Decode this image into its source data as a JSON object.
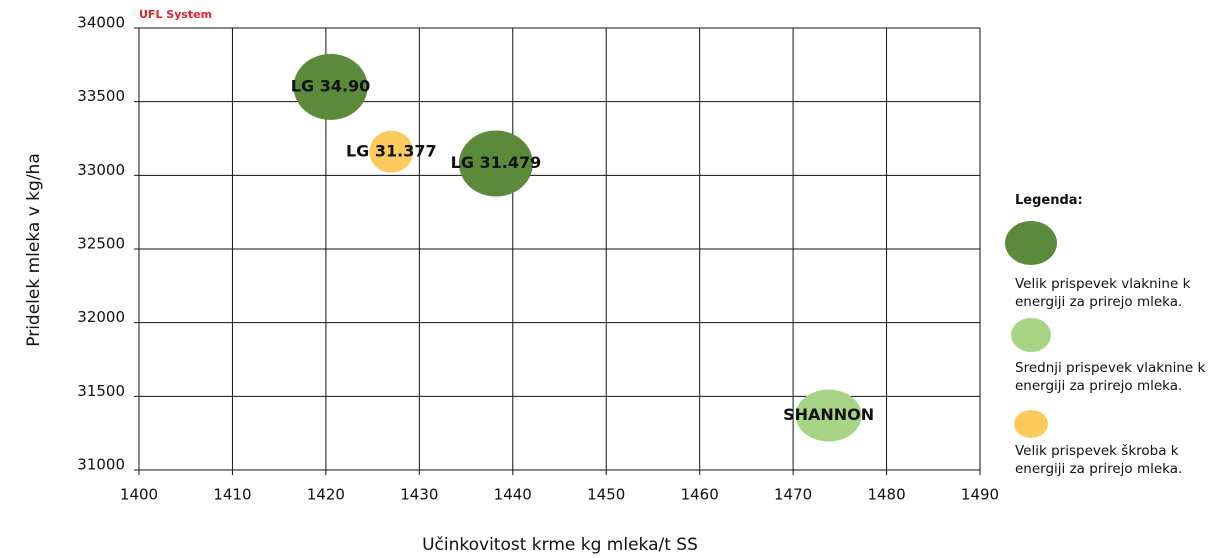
{
  "chart_data": {
    "type": "scatter",
    "title": "UFL System",
    "xlabel": "Učinkovitost krme kg mleka/t SS",
    "ylabel": "Pridelek mleka v kg/ha",
    "legend_title": "Legenda:",
    "xlim": [
      1400,
      1490
    ],
    "xticks": [
      1400,
      1410,
      1420,
      1430,
      1440,
      1450,
      1460,
      1470,
      1480,
      1490
    ],
    "ylim": [
      31000,
      34000
    ],
    "yticks": [
      31000,
      31500,
      32000,
      32500,
      33000,
      33500,
      34000
    ],
    "grid": true,
    "legend": "right",
    "series": [
      {
        "name": "Velik prispevek vlaknine k energiji za prirejo mleka.",
        "color": "#5a8a3a",
        "x": [
          1420.5,
          1438.2
        ],
        "values": [
          33600,
          33080
        ],
        "labels": [
          "LG 34.90",
          "LG 31.479"
        ]
      },
      {
        "name": "Srednji prispevek vlaknine k energiji za prirejo mleka.",
        "color": "#a8d486",
        "x": [
          1473.8
        ],
        "values": [
          31370
        ],
        "labels": [
          "SHANNON"
        ]
      },
      {
        "name": "Velik prispevek škroba k energiji za prirejo mleka.",
        "color": "#fccb5e",
        "x": [
          1427
        ],
        "values": [
          33160
        ],
        "labels": [
          "LG 31.377"
        ]
      }
    ]
  }
}
